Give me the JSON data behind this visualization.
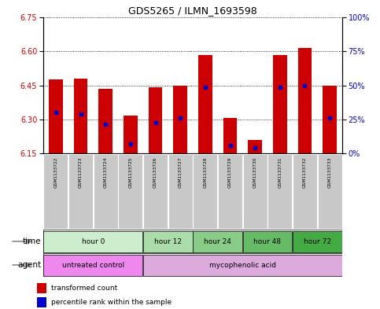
{
  "title": "GDS5265 / ILMN_1693598",
  "samples": [
    "GSM1133722",
    "GSM1133723",
    "GSM1133724",
    "GSM1133725",
    "GSM1133726",
    "GSM1133727",
    "GSM1133728",
    "GSM1133729",
    "GSM1133730",
    "GSM1133731",
    "GSM1133732",
    "GSM1133733"
  ],
  "bar_tops": [
    6.475,
    6.48,
    6.435,
    6.315,
    6.44,
    6.45,
    6.585,
    6.305,
    6.21,
    6.585,
    6.615,
    6.45
  ],
  "bar_bottom": 6.15,
  "blue_positions": [
    6.33,
    6.325,
    6.28,
    6.19,
    6.285,
    6.305,
    6.44,
    6.185,
    6.175,
    6.44,
    6.45,
    6.305
  ],
  "ylim_left": [
    6.15,
    6.75
  ],
  "yticks_left": [
    6.15,
    6.3,
    6.45,
    6.6,
    6.75
  ],
  "yticks_right": [
    0,
    25,
    50,
    75,
    100
  ],
  "bar_color": "#cc0000",
  "blue_color": "#0000cc",
  "bar_width": 0.55,
  "time_groups": [
    {
      "label": "hour 0",
      "samples": [
        0,
        1,
        2,
        3
      ],
      "color": "#cceecc"
    },
    {
      "label": "hour 12",
      "samples": [
        4,
        5
      ],
      "color": "#aaddaa"
    },
    {
      "label": "hour 24",
      "samples": [
        6,
        7
      ],
      "color": "#88cc88"
    },
    {
      "label": "hour 48",
      "samples": [
        8,
        9
      ],
      "color": "#66bb66"
    },
    {
      "label": "hour 72",
      "samples": [
        10,
        11
      ],
      "color": "#44aa44"
    }
  ],
  "agent_groups": [
    {
      "label": "untreated control",
      "samples": [
        0,
        1,
        2,
        3
      ],
      "color": "#ee88ee"
    },
    {
      "label": "mycophenolic acid",
      "samples": [
        4,
        5,
        6,
        7,
        8,
        9,
        10,
        11
      ],
      "color": "#ddaadd"
    }
  ],
  "left_label_color": "#cc0000",
  "right_label_color": "#0000cc",
  "sample_bg_color": "#c8c8c8",
  "plot_bg": "#ffffff"
}
